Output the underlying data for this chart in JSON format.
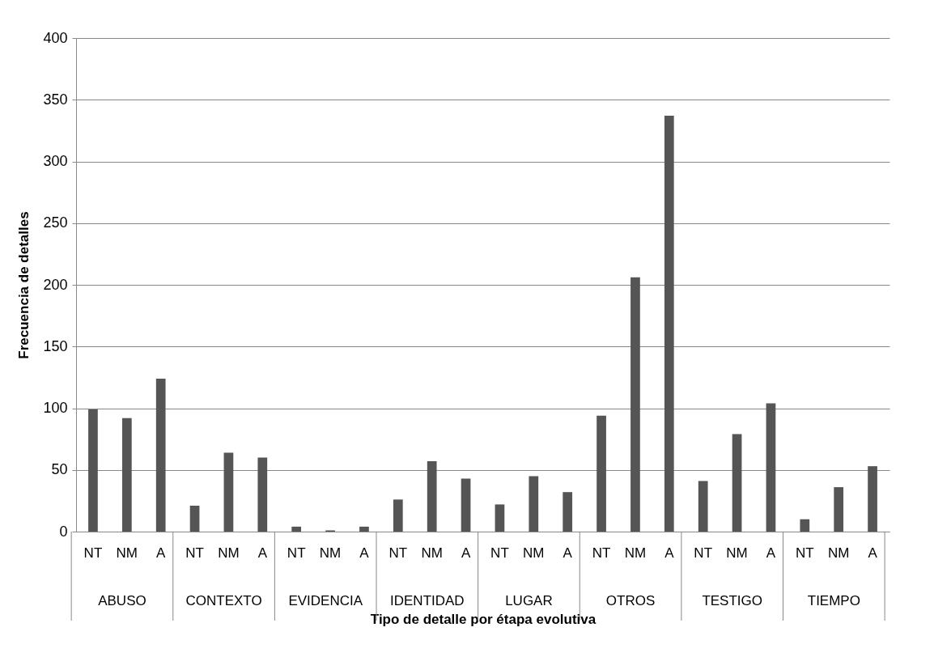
{
  "chart_data": {
    "type": "bar",
    "xlabel": "Tipo de detalle por étapa evolutiva",
    "ylabel": "Frecuencia de detalles",
    "categories": [
      "NT",
      "NM",
      "A",
      "NT",
      "NM",
      "A",
      "NT",
      "NM",
      "A",
      "NT",
      "NM",
      "A",
      "NT",
      "NM",
      "A",
      "NT",
      "NM",
      "A",
      "NT",
      "NM",
      "A",
      "NT",
      "NM",
      "A"
    ],
    "values": [
      99,
      92,
      124,
      21,
      64,
      60,
      4,
      1,
      4,
      26,
      57,
      43,
      22,
      45,
      32,
      94,
      206,
      337,
      41,
      79,
      104,
      10,
      36,
      53
    ],
    "color": "#555555",
    "ylim": [
      0,
      400
    ],
    "yticks": [
      0,
      50,
      100,
      150,
      200,
      250,
      300,
      350,
      400
    ],
    "grid": "y",
    "annotations": [
      "ABUSO",
      "CONTEXTO",
      "EVIDENCIA",
      "IDENTIDAD",
      "LUGAR",
      "OTROS",
      "TESTIGO",
      "TIEMPO"
    ]
  }
}
